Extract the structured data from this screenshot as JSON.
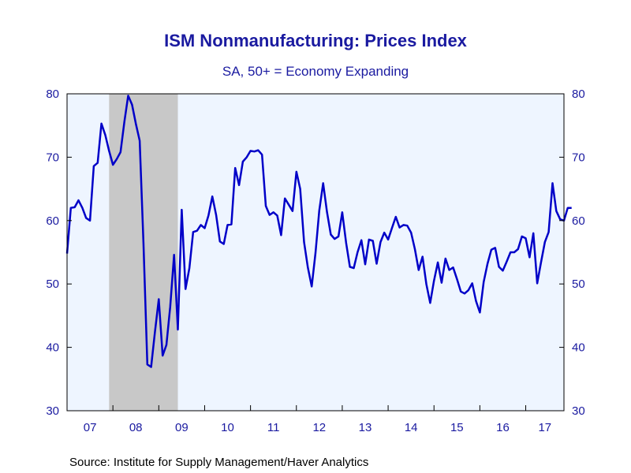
{
  "colors": {
    "text": "#1a1aa0",
    "line": "#0000c8",
    "plot_bg": "#eef5ff",
    "recession": "#c8c8c8",
    "source_text": "#000000"
  },
  "chart_data": {
    "type": "line",
    "title": "ISM Nonmanufacturing: Prices Index",
    "subtitle": "SA, 50+ = Economy Expanding",
    "source": "Source:  Institute for Supply Management/Haver Analytics",
    "ylim": [
      30,
      80
    ],
    "y_ticks": [
      30,
      40,
      50,
      60,
      70,
      80
    ],
    "y_axis_both_sides": true,
    "grid": false,
    "x_start": "2007-01",
    "x_end": "2017-11",
    "year_labels": [
      "07",
      "08",
      "09",
      "10",
      "11",
      "12",
      "13",
      "14",
      "15",
      "16",
      "17"
    ],
    "recession": {
      "start": "2007-12",
      "end": "2009-06"
    },
    "series": [
      {
        "values": [
          54.8,
          62.0,
          62.1,
          63.2,
          62.0,
          60.4,
          60.0,
          68.6,
          69.1,
          75.3,
          73.5,
          71.0,
          68.8,
          69.7,
          70.8,
          75.6,
          79.7,
          78.3,
          75.3,
          72.6,
          56.4,
          37.3,
          36.9,
          42.5,
          47.6,
          38.7,
          40.4,
          46.4,
          54.6,
          42.8,
          61.7,
          49.2,
          52.5,
          58.2,
          58.4,
          59.3,
          58.8,
          60.8,
          63.8,
          60.9,
          56.7,
          56.3,
          59.3,
          59.4,
          68.3,
          65.6,
          69.3,
          70.0,
          71.0,
          70.9,
          71.1,
          70.4,
          62.3,
          60.9,
          61.3,
          60.8,
          57.7,
          63.5,
          62.5,
          61.5,
          67.7,
          65.0,
          56.6,
          52.6,
          49.6,
          54.9,
          61.6,
          65.9,
          61.4,
          57.8,
          57.1,
          57.5,
          61.3,
          56.5,
          52.7,
          52.5,
          55.0,
          56.9,
          53.1,
          57.0,
          56.8,
          53.2,
          56.6,
          58.1,
          57.0,
          58.8,
          60.6,
          58.9,
          59.3,
          59.2,
          58.1,
          55.5,
          52.2,
          54.3,
          50.0,
          47.0,
          50.5,
          53.4,
          50.2,
          54.0,
          52.2,
          52.6,
          50.8,
          48.8,
          48.5,
          49.0,
          50.1,
          47.3,
          45.5,
          50.3,
          53.2,
          55.4,
          55.7,
          52.7,
          52.1,
          53.5,
          55.0,
          55.0,
          55.5,
          57.5,
          57.2,
          54.2,
          58.0,
          50.1,
          53.4,
          56.6,
          58.2,
          65.9,
          61.5,
          60.2,
          60.0,
          62.0,
          62.0
        ]
      }
    ]
  }
}
